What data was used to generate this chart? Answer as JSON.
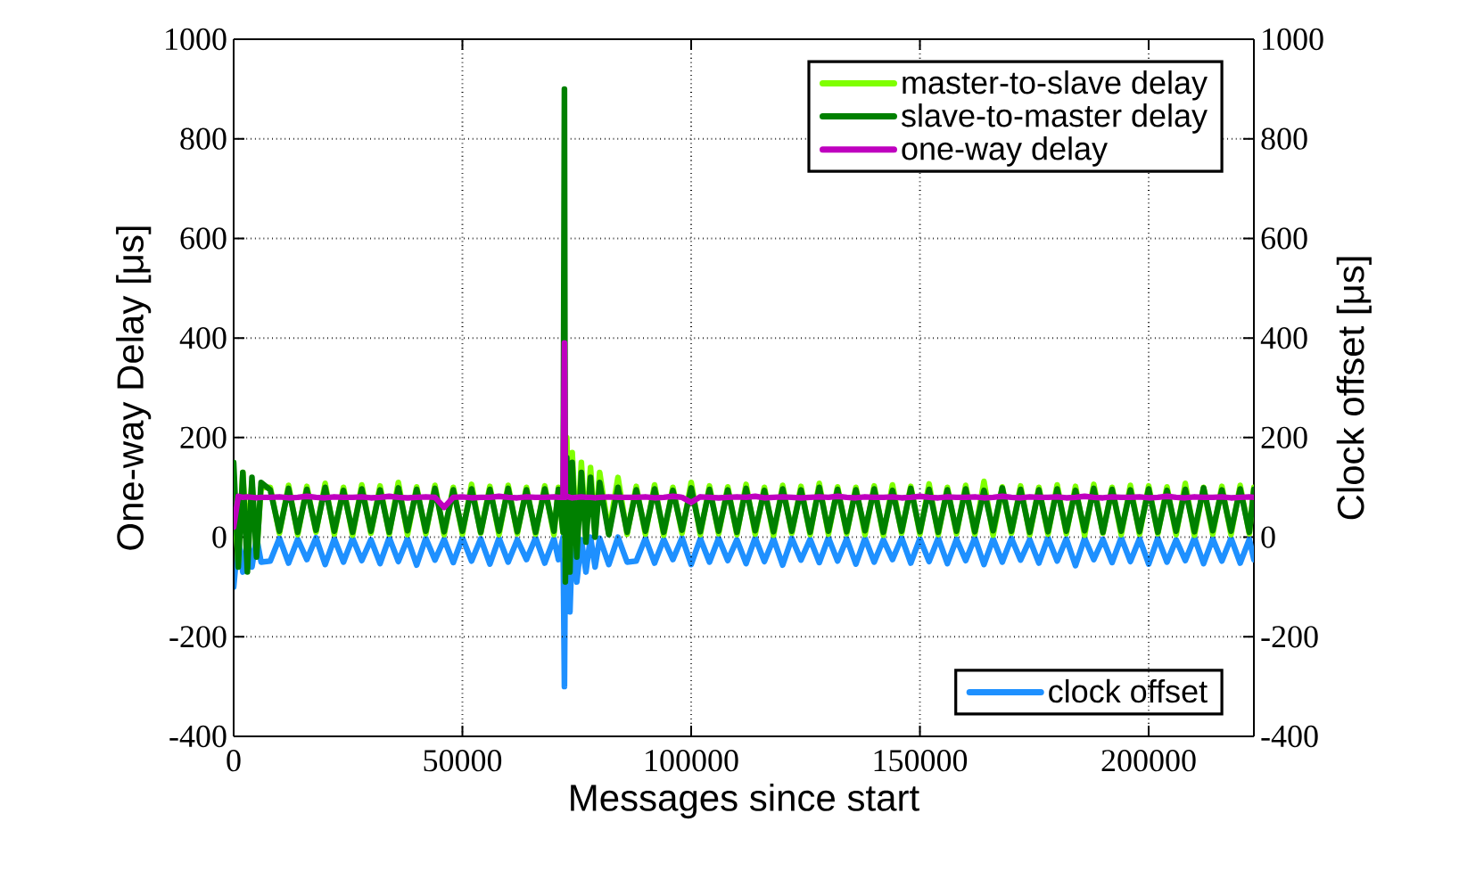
{
  "chart_data": {
    "type": "line",
    "xlabel": "Messages since start",
    "ylabel": "One-way Delay [μs]",
    "y2label": "Clock offset [μs]",
    "x": [
      0,
      1000,
      2000,
      3000,
      4000,
      5000,
      6000,
      8000,
      10000,
      12000,
      14000,
      16000,
      18000,
      20000,
      22000,
      24000,
      26000,
      28000,
      30000,
      32000,
      34000,
      36000,
      38000,
      40000,
      42000,
      44000,
      46000,
      48000,
      50000,
      52000,
      54000,
      56000,
      58000,
      60000,
      62000,
      64000,
      66000,
      68000,
      70000,
      71000,
      72000,
      72300,
      72500,
      72800,
      73500,
      74000,
      75000,
      76000,
      77000,
      78000,
      79000,
      80000,
      82000,
      84000,
      86000,
      88000,
      90000,
      92000,
      94000,
      96000,
      98000,
      100000,
      102000,
      104000,
      106000,
      108000,
      110000,
      112000,
      114000,
      116000,
      118000,
      120000,
      122000,
      124000,
      126000,
      128000,
      130000,
      132000,
      134000,
      136000,
      138000,
      140000,
      142000,
      144000,
      146000,
      148000,
      150000,
      152000,
      154000,
      156000,
      158000,
      160000,
      162000,
      164000,
      166000,
      168000,
      170000,
      172000,
      174000,
      176000,
      178000,
      180000,
      182000,
      184000,
      186000,
      188000,
      190000,
      192000,
      194000,
      196000,
      198000,
      200000,
      202000,
      204000,
      206000,
      208000,
      210000,
      212000,
      214000,
      216000,
      218000,
      220000,
      222000,
      223000
    ],
    "series": [
      {
        "name": "master-to-slave delay",
        "color": "#7fff00",
        "values": [
          80,
          -50,
          130,
          -20,
          110,
          -30,
          100,
          100,
          8,
          104,
          5,
          102,
          10,
          108,
          6,
          100,
          4,
          105,
          8,
          103,
          6,
          110,
          5,
          101,
          7,
          104,
          5,
          100,
          6,
          106,
          8,
          102,
          5,
          104,
          7,
          100,
          6,
          103,
          5,
          100,
          10,
          180,
          -40,
          200,
          -30,
          170,
          -20,
          150,
          0,
          140,
          5,
          130,
          8,
          120,
          6,
          102,
          6,
          105,
          4,
          100,
          8,
          110,
          5,
          103,
          7,
          101,
          5,
          106,
          6,
          100,
          4,
          104,
          8,
          102,
          5,
          108,
          6,
          101,
          7,
          100,
          5,
          103,
          4,
          105,
          8,
          102,
          6,
          107,
          5,
          100,
          7,
          104,
          6,
          112,
          4,
          101,
          8,
          103,
          5,
          100,
          6,
          105,
          7,
          102,
          4,
          106,
          8,
          100,
          5,
          104,
          6,
          103,
          7,
          101,
          5,
          108,
          4,
          100,
          6,
          102,
          5,
          104,
          7,
          100
        ]
      },
      {
        "name": "slave-to-master delay",
        "color": "#008000",
        "values": [
          150,
          -60,
          130,
          -70,
          120,
          -40,
          110,
          95,
          12,
          98,
          10,
          96,
          14,
          100,
          12,
          94,
          10,
          97,
          12,
          95,
          10,
          99,
          13,
          96,
          12,
          98,
          11,
          95,
          12,
          97,
          10,
          96,
          12,
          98,
          11,
          95,
          10,
          97,
          12,
          96,
          10,
          900,
          -90,
          160,
          -70,
          150,
          -40,
          130,
          -10,
          120,
          0,
          110,
          5,
          100,
          10,
          95,
          12,
          97,
          10,
          94,
          14,
          99,
          11,
          96,
          12,
          95,
          10,
          98,
          13,
          94,
          11,
          97,
          12,
          95,
          10,
          100,
          12,
          96,
          11,
          95,
          13,
          97,
          10,
          94,
          12,
          98,
          11,
          96,
          10,
          95,
          12,
          97,
          11,
          94,
          13,
          99,
          12,
          96,
          10,
          95,
          11,
          97,
          12,
          94,
          13,
          98,
          10,
          96,
          12,
          95,
          11,
          97,
          10,
          94,
          12,
          96,
          11,
          99,
          13,
          95,
          12,
          97,
          10,
          96
        ]
      },
      {
        "name": "one-way delay",
        "color": "#bf00bf",
        "values": [
          20,
          82,
          80,
          81,
          80,
          79,
          80,
          80,
          81,
          79,
          80,
          82,
          80,
          79,
          81,
          80,
          80,
          81,
          79,
          80,
          82,
          80,
          79,
          80,
          81,
          80,
          60,
          80,
          81,
          79,
          80,
          80,
          82,
          80,
          79,
          81,
          80,
          80,
          81,
          80,
          80,
          390,
          80,
          82,
          80,
          79,
          80,
          81,
          80,
          80,
          79,
          80,
          81,
          80,
          80,
          80,
          81,
          79,
          80,
          82,
          80,
          70,
          81,
          80,
          79,
          80,
          81,
          80,
          82,
          79,
          80,
          81,
          80,
          79,
          80,
          81,
          80,
          82,
          80,
          79,
          81,
          80,
          80,
          81,
          79,
          80,
          82,
          80,
          79,
          81,
          80,
          80,
          81,
          79,
          80,
          82,
          80,
          79,
          81,
          80,
          80,
          81,
          79,
          80,
          82,
          80,
          79,
          81,
          80,
          80,
          81,
          79,
          80,
          82,
          80,
          79,
          81,
          80,
          80,
          81,
          79,
          80,
          81,
          80
        ]
      },
      {
        "name": "clock offset",
        "color": "#1e90ff",
        "axis": "y2",
        "values": [
          -100,
          0,
          -70,
          -5,
          -60,
          0,
          -50,
          -48,
          -2,
          -52,
          -4,
          -45,
          -1,
          -55,
          -3,
          -50,
          -2,
          -47,
          -5,
          -53,
          -1,
          -49,
          -3,
          -56,
          -2,
          -46,
          -4,
          -51,
          -1,
          -48,
          -3,
          -54,
          -2,
          -50,
          -5,
          -45,
          -1,
          -52,
          -3,
          -45,
          0,
          -300,
          -20,
          -120,
          -150,
          -10,
          -90,
          -5,
          -70,
          0,
          -60,
          -2,
          -55,
          0,
          -50,
          -48,
          -2,
          -52,
          -4,
          -45,
          -1,
          -55,
          -3,
          -50,
          -2,
          -47,
          -5,
          -53,
          -1,
          -49,
          -3,
          -56,
          -2,
          -46,
          -4,
          -51,
          -1,
          -48,
          -3,
          -54,
          -2,
          -50,
          -5,
          -45,
          -1,
          -52,
          -3,
          -49,
          -2,
          -53,
          -4,
          -47,
          -1,
          -55,
          -3,
          -50,
          -2,
          -46,
          -5,
          -52,
          -1,
          -48,
          -3,
          -57,
          -2,
          -45,
          -4,
          -51,
          -1,
          -49,
          -3,
          -54,
          -2,
          -50,
          -5,
          -47,
          -1,
          -53,
          -3,
          -48,
          -2,
          -52,
          -4,
          -45
        ]
      }
    ],
    "xlim": [
      0,
      223000
    ],
    "xticks": [
      0,
      50000,
      100000,
      150000,
      200000
    ],
    "ylim": [
      -400,
      1000
    ],
    "yticks": [
      -400,
      -200,
      0,
      200,
      400,
      600,
      800,
      1000
    ],
    "y2lim": [
      -400,
      1000
    ],
    "y2ticks": [
      -400,
      -200,
      0,
      200,
      400,
      600,
      800,
      1000
    ],
    "grid": true,
    "legend": "top right",
    "marker": "none",
    "line_style": "solid"
  }
}
